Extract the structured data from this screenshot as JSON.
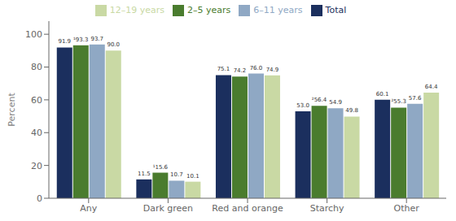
{
  "chart_data": {
    "type": "bar",
    "y_label": "Percent",
    "categories": [
      "Any",
      "Dark green",
      "Red and orange",
      "Starchy",
      "Other"
    ],
    "series": [
      {
        "name": "Total",
        "color": "#1b2f5e",
        "values": [
          91.9,
          11.5,
          75.1,
          53.0,
          60.1
        ],
        "value_labels": [
          "91.9",
          "11.5",
          "75.1",
          "53.0",
          "60.1"
        ]
      },
      {
        "name": "2–5 years",
        "color": "#4a7c2e",
        "values": [
          93.3,
          15.6,
          74.2,
          56.4,
          55.3
        ],
        "value_labels": [
          "¹93.3",
          "¹15.6",
          "74.2",
          "²56.4",
          "²55.3"
        ]
      },
      {
        "name": "6–11 years",
        "color": "#8fa8c4",
        "values": [
          93.7,
          10.7,
          76.0,
          54.9,
          57.6
        ],
        "value_labels": [
          "93.7",
          "10.7",
          "76.0",
          "54.9",
          "57.6"
        ]
      },
      {
        "name": "12–19 years",
        "color": "#c9d9a4",
        "values": [
          90.0,
          10.1,
          74.9,
          49.8,
          64.4
        ],
        "value_labels": [
          "90.0",
          "10.1",
          "74.9",
          "49.8",
          "64.4"
        ]
      }
    ],
    "ylim": [
      0,
      108
    ],
    "yticks": [
      0,
      20,
      40,
      60,
      80,
      100
    ],
    "grid": false,
    "legend": "top",
    "data_labels": true
  }
}
